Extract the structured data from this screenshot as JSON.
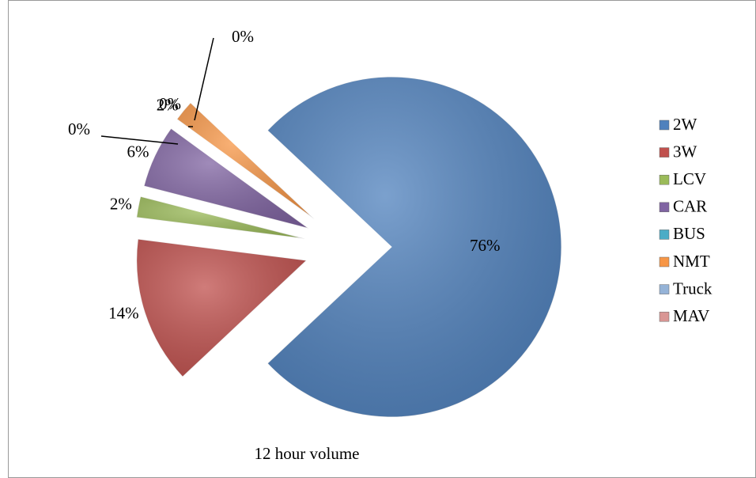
{
  "chart_data": {
    "type": "pie",
    "title": "12 hour volume",
    "categories": [
      "2W",
      "3W",
      "LCV",
      "CAR",
      "BUS",
      "NMT",
      "Truck",
      "MAV"
    ],
    "values": [
      76,
      14,
      2,
      6,
      0,
      2,
      0,
      0
    ],
    "value_labels": [
      "76%",
      "14%",
      "2%",
      "6%",
      "0%",
      "2%",
      "0%",
      "0%"
    ],
    "colors": [
      "#4f81bd",
      "#c0504d",
      "#9bbb59",
      "#8064a2",
      "#4bacc6",
      "#f79646",
      "#95b3d7",
      "#d99694"
    ],
    "legend": "right"
  }
}
